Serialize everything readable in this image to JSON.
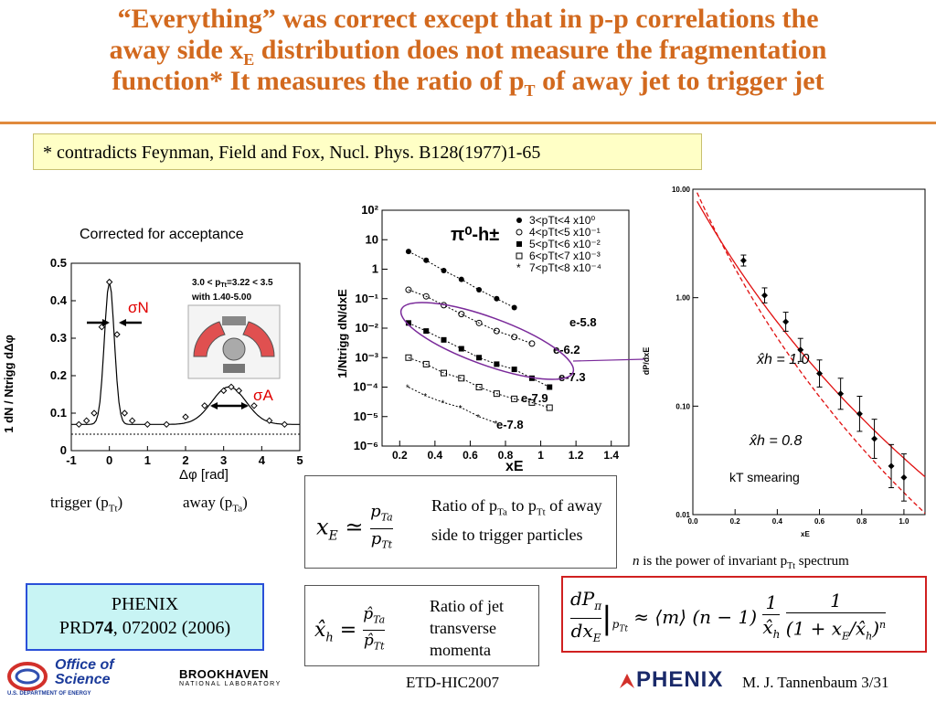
{
  "title": {
    "line1": "“Everything” was correct except that in p-p correlations the",
    "line2_a": "away side x",
    "line2_sub": "E",
    "line2_b": " distribution does not measure the fragmentation",
    "line3_a": "function* It measures the ratio of p",
    "line3_sub": "T",
    "line3_b": " of away jet to trigger jet"
  },
  "note": "* contradicts Feynman, Field and Fox, Nucl. Phys. B128(1977)1-65",
  "left_plot": {
    "caption": "Corrected for acceptance",
    "y_ticks": [
      "0.5",
      "0.4",
      "0.3",
      "0.2",
      "0.1",
      "0"
    ],
    "x_ticks": [
      "-1",
      "0",
      "1",
      "2",
      "3",
      "4",
      "5"
    ],
    "sigma_n": "σN",
    "sigma_a": "σA",
    "inset_line1": "3.0 < p",
    "inset_line1_b": "=3.22 < 3.5",
    "inset_line2": "with 1.40-5.00",
    "trigger_label": "trigger (p",
    "trigger_sub": "Tt",
    "away_label": "away (p",
    "away_sub": "Ta",
    "ylabel": "1 dN / Ntrigg dΔφ",
    "xlabel": "Δφ  [rad]"
  },
  "mid_plot": {
    "y_ticks": [
      "10²",
      "10",
      "1",
      "10⁻¹",
      "10⁻²",
      "10⁻³",
      "10⁻⁴",
      "10⁻⁵",
      "10⁻⁶"
    ],
    "x_ticks": [
      "0.2",
      "0.4",
      "0.6",
      "0.8",
      "1",
      "1.2",
      "1.4"
    ],
    "header": "π⁰-h±",
    "legend": [
      "3<pTt<4 x10⁰",
      "4<pTt<5 x10⁻¹",
      "5<pTt<6 x10⁻²",
      "6<pTt<7 x10⁻³",
      "7<pTt<8 x10⁻⁴"
    ],
    "slopes": [
      "e-5.8",
      "e-6.2",
      "e-7.3",
      "e-7.9",
      "e-7.8"
    ],
    "xlabel": "xE",
    "ylabel": "1/Ntrigg dN/dxE"
  },
  "right_plot": {
    "y_ticks": [
      "10.00",
      "1.00",
      "0.10",
      "0.01"
    ],
    "x_ticks": [
      "0.0",
      "0.2",
      "0.4",
      "0.6",
      "0.8",
      "1.0"
    ],
    "xh1": "x̂h = 1.0",
    "xh2": "x̂h = 0.8",
    "kt": "kT smearing",
    "ylabel": "dP/dxE",
    "xlabel": "xE"
  },
  "eq_xe": {
    "text": "Ratio of pTa to pTt of away side to trigger particles",
    "t1": "Ratio of p",
    "s1": "Ta",
    "t2": " to p",
    "s2": "Tt",
    "t3": " of away side to trigger particles"
  },
  "eq_xh": {
    "text": "Ratio of jet transverse momenta"
  },
  "n_note_a": "n",
  "n_note_b": " is the power of invariant p",
  "n_note_sub": "Tt",
  "n_note_c": " spectrum",
  "reference": {
    "line1": "PHENIX",
    "line2_a": "PRD",
    "line2_b": "74",
    "line2_c": ", 072002 (2006)"
  },
  "footer": {
    "office1": "Office of",
    "office2": "Science",
    "doe": "U.S. DEPARTMENT OF ENERGY",
    "bnl1": "BROOKHAVEN",
    "bnl2": "NATIONAL LABORATORY",
    "conf": "ETD-HIC2007",
    "phenix": "PHENIX",
    "author": "M. J. Tannenbaum   3/31"
  },
  "colors": {
    "title": "#d2691e",
    "note_bg": "#ffffc6",
    "ref_bg": "#c8f4f4",
    "ref_border": "#2a50d8",
    "eq_border": "#d02020"
  },
  "chart_data": [
    {
      "type": "line",
      "title": "",
      "xlabel": "Δφ [rad]",
      "ylabel": "1/Ntrigg dN/dΔφ",
      "xlim": [
        -1,
        5
      ],
      "ylim": [
        0,
        0.5
      ],
      "series": [
        {
          "x": [
            -0.8,
            -0.6,
            -0.4,
            -0.2,
            0,
            0.2,
            0.4,
            0.6,
            1.0,
            1.5,
            2.0,
            2.5,
            3.0,
            3.2,
            3.4,
            3.8,
            4.2,
            4.6
          ],
          "values": [
            0.07,
            0.08,
            0.1,
            0.33,
            0.45,
            0.31,
            0.1,
            0.08,
            0.07,
            0.07,
            0.09,
            0.12,
            0.16,
            0.17,
            0.16,
            0.12,
            0.08,
            0.07
          ]
        }
      ]
    },
    {
      "type": "scatter",
      "xlabel": "xE",
      "ylabel": "1/Ntrigg dN/dxE",
      "xlim": [
        0.1,
        1.5
      ],
      "ylim": [
        1e-06,
        100
      ],
      "series": [
        {
          "name": "3<pTt<4 x10⁰",
          "x": [
            0.25,
            0.35,
            0.45,
            0.55,
            0.65,
            0.75,
            0.85
          ],
          "values": [
            4,
            2,
            0.9,
            0.45,
            0.2,
            0.1,
            0.05
          ]
        },
        {
          "name": "4<pTt<5 x10⁻¹",
          "x": [
            0.25,
            0.35,
            0.45,
            0.55,
            0.65,
            0.75,
            0.85,
            0.95
          ],
          "values": [
            0.2,
            0.12,
            0.06,
            0.03,
            0.015,
            0.008,
            0.005,
            0.003
          ]
        },
        {
          "name": "5<pTt<6 x10⁻²",
          "x": [
            0.25,
            0.35,
            0.45,
            0.55,
            0.65,
            0.75,
            0.85,
            0.95,
            1.05
          ],
          "values": [
            0.015,
            0.008,
            0.004,
            0.002,
            0.001,
            0.0006,
            0.0004,
            0.0002,
            0.0001
          ]
        },
        {
          "name": "6<pTt<7 x10⁻³",
          "x": [
            0.25,
            0.35,
            0.45,
            0.55,
            0.65,
            0.75,
            0.85,
            0.95,
            1.05
          ],
          "values": [
            0.001,
            0.0006,
            0.0003,
            0.0002,
            0.0001,
            6e-05,
            4e-05,
            3e-05,
            2e-05
          ]
        },
        {
          "name": "7<pTt<8 x10⁻⁴",
          "x": [
            0.25,
            0.35,
            0.45,
            0.55,
            0.65,
            0.75
          ],
          "values": [
            0.0001,
            5e-05,
            3e-05,
            2e-05,
            1e-05,
            6e-06
          ]
        }
      ]
    },
    {
      "type": "scatter",
      "xlabel": "xE",
      "ylabel": "dP/dxE",
      "xlim": [
        0,
        1.1
      ],
      "ylim": [
        0.01,
        10
      ],
      "series": [
        {
          "x": [
            0.24,
            0.34,
            0.44,
            0.51,
            0.6,
            0.7,
            0.79,
            0.86,
            0.94,
            1.0
          ],
          "values": [
            2.2,
            1.05,
            0.6,
            0.33,
            0.2,
            0.13,
            0.085,
            0.05,
            0.028,
            0.022
          ]
        }
      ]
    }
  ]
}
